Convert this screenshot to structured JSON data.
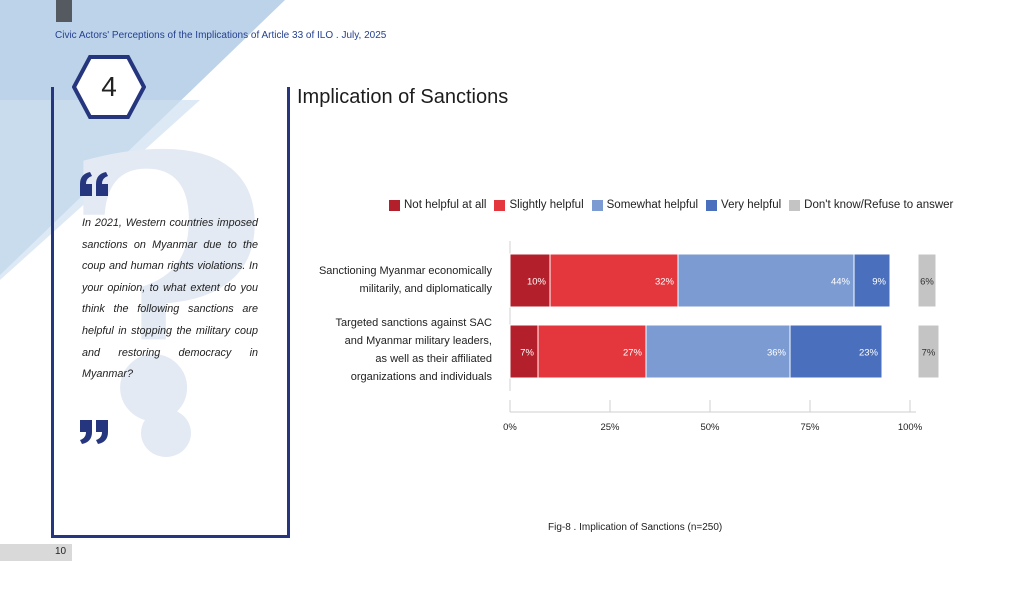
{
  "header": {
    "running_title": "Civic Actors' Perceptions of the Implications of Article 33 of ILO . July, 2025"
  },
  "section": {
    "number": "4",
    "title": "Implication of Sanctions"
  },
  "question": {
    "text": "In 2021, Western countries imposed sanctions on Myanmar due to the coup and human rights violations. In your opinion, to what extent do you think the following sanctions are helpful in stopping the military coup and restoring democracy in Myanmar?"
  },
  "icons": {
    "open_quote": "open-quote-icon",
    "close_quote": "close-quote-icon",
    "question_mark": "question-mark-watermark-icon"
  },
  "colors": {
    "accent": "#25367e",
    "background_shape": "#bcd3ea"
  },
  "chart_data": {
    "type": "bar",
    "orientation": "horizontal",
    "stacked": true,
    "categories": [
      "Sanctioning Myanmar economically militarily, and diplomatically",
      "Targeted sanctions against SAC and Myanmar military leaders, as well as their affiliated organizations and individuals"
    ],
    "category_lines": [
      [
        "Sanctioning Myanmar economically",
        "militarily, and diplomatically"
      ],
      [
        "Targeted sanctions against SAC",
        "and Myanmar military leaders,",
        "as well as their affiliated",
        "organizations and individuals"
      ]
    ],
    "series": [
      {
        "name": "Not helpful at all",
        "color": "#b3202b",
        "values": [
          10,
          7
        ],
        "labels": [
          "10%",
          "7%"
        ]
      },
      {
        "name": "Slightly helpful",
        "color": "#e3373d",
        "values": [
          32,
          27
        ],
        "labels": [
          "32%",
          "27%"
        ]
      },
      {
        "name": "Somewhat helpful",
        "color": "#7b9bd2",
        "values": [
          44,
          36
        ],
        "labels": [
          "44%",
          "36%"
        ]
      },
      {
        "name": "Very helpful",
        "color": "#4a6fbc",
        "values": [
          9,
          23
        ],
        "labels": [
          "9%",
          "23%"
        ]
      },
      {
        "name": "Don't know/Refuse to answer",
        "color": "#c4c4c4",
        "values": [
          6,
          7
        ],
        "labels": [
          "6%",
          "7%"
        ],
        "separate": true
      }
    ],
    "xlim": [
      0,
      100
    ],
    "xticks": [
      0,
      25,
      50,
      75,
      100
    ],
    "xtick_labels": [
      "0%",
      "25%",
      "50%",
      "75%",
      "100%"
    ],
    "legend_position": "top",
    "caption": "Fig-8 . Implication of Sanctions (n=250)"
  },
  "footer": {
    "page_number": "10"
  }
}
